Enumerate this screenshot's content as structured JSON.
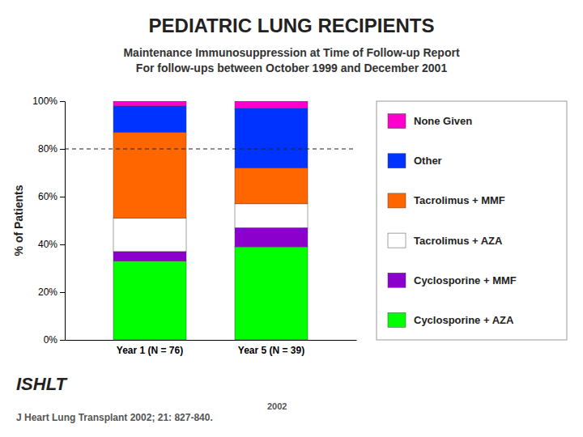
{
  "chart_data": {
    "type": "bar",
    "stacked": true,
    "title": "PEDIATRIC LUNG RECIPIENTS",
    "subtitle": "Maintenance Immunosuppression at Time of Follow-up Report\nFor follow-ups between October 1999 and December 2001",
    "categories": [
      "Year 1  (N = 76)",
      "Year 5  (N = 39)"
    ],
    "series": [
      {
        "name": "Cyclosporine + AZA",
        "color": "#00ff00",
        "values": [
          33,
          39
        ]
      },
      {
        "name": "Cyclosporine + MMF",
        "color": "#8b00cc",
        "values": [
          4,
          8
        ]
      },
      {
        "name": "Tacrolimus + AZA",
        "color": "#ffffff",
        "values": [
          14,
          10
        ]
      },
      {
        "name": "Tacrolimus + MMF",
        "color": "#ff6600",
        "values": [
          36,
          15
        ]
      },
      {
        "name": "Other",
        "color": "#0033ff",
        "values": [
          11,
          25
        ]
      },
      {
        "name": "None Given",
        "color": "#ff00cc",
        "values": [
          2,
          3
        ]
      }
    ],
    "ylabel": "% of Patients",
    "ylim": [
      0,
      100
    ],
    "yticks": [
      {
        "value": 0,
        "label": "0%"
      },
      {
        "value": 20,
        "label": "20%"
      },
      {
        "value": 40,
        "label": "40%"
      },
      {
        "value": 60,
        "label": "60%"
      },
      {
        "value": 80,
        "label": "80%"
      },
      {
        "value": 100,
        "label": "100%"
      }
    ],
    "hline": 80,
    "grid": false,
    "legend": "right",
    "annotations": [
      "ISHLT",
      "J Heart Lung Transplant 2002; 21: 827-840.",
      "2002"
    ]
  }
}
